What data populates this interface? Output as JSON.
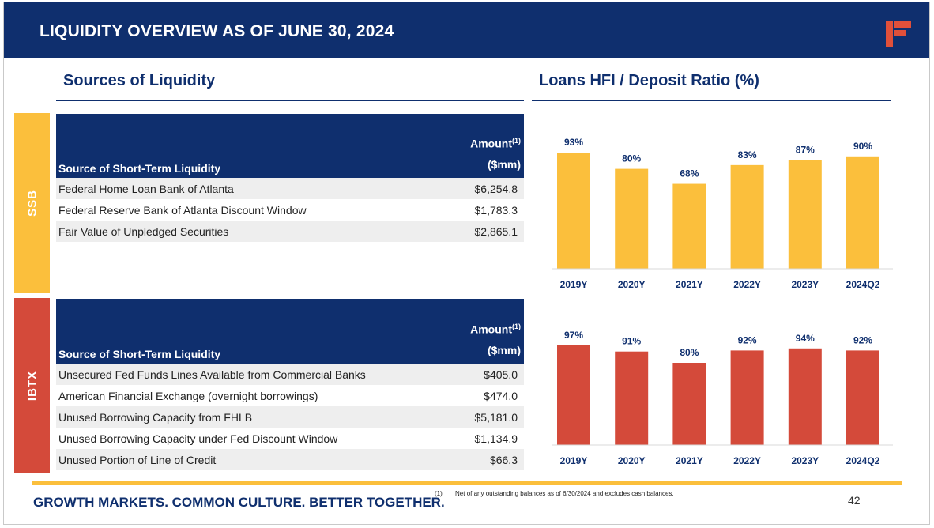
{
  "header": {
    "title": "LIQUIDITY OVERVIEW AS OF JUNE 30, 2024"
  },
  "left": {
    "title": "Sources of Liquidity"
  },
  "right": {
    "title": "Loans HFI / Deposit Ratio (%)"
  },
  "colors": {
    "navy": "#0f2f6e",
    "gold": "#fbbf3c",
    "red": "#d44a3a",
    "logo": "#e0503a"
  },
  "ssb": {
    "label": "SSB",
    "table": {
      "col1": "Source of Short-Term Liquidity",
      "col2_line1": "Amount",
      "col2_sup": "(1)",
      "col2_line2": "($mm)",
      "rows": [
        {
          "source": "Federal Home Loan Bank of Atlanta",
          "amount": "$6,254.8"
        },
        {
          "source": "Federal Reserve Bank of Atlanta Discount Window",
          "amount": "$1,783.3"
        },
        {
          "source": "Fair Value of Unpledged Securities",
          "amount": "$2,865.1"
        }
      ]
    }
  },
  "ibtx": {
    "label": "IBTX",
    "table": {
      "col1": "Source of Short-Term Liquidity",
      "col2_line1": "Amount",
      "col2_sup": "(1)",
      "col2_line2": "($mm)",
      "rows": [
        {
          "source": "Unsecured Fed Funds Lines Available from Commercial Banks",
          "amount": "$405.0"
        },
        {
          "source": "American Financial Exchange (overnight borrowings)",
          "amount": "$474.0"
        },
        {
          "source": "Unused Borrowing Capacity from FHLB",
          "amount": "$5,181.0"
        },
        {
          "source": "Unused Borrowing Capacity under Fed Discount Window",
          "amount": "$1,134.9"
        },
        {
          "source": "Unused Portion of Line of Credit",
          "amount": "$66.3"
        }
      ]
    }
  },
  "chart_data": [
    {
      "type": "bar",
      "title": "Loans HFI / Deposit Ratio (%)",
      "series_name": "SSB",
      "categories": [
        "2019Y",
        "2020Y",
        "2021Y",
        "2022Y",
        "2023Y",
        "2024Q2"
      ],
      "values": [
        93,
        80,
        68,
        83,
        87,
        90
      ],
      "labels": [
        "93%",
        "80%",
        "68%",
        "83%",
        "87%",
        "90%"
      ],
      "color": "#fbbf3c",
      "ylim": [
        0,
        100
      ]
    },
    {
      "type": "bar",
      "title": "Loans HFI / Deposit Ratio (%)",
      "series_name": "IBTX",
      "categories": [
        "2019Y",
        "2020Y",
        "2021Y",
        "2022Y",
        "2023Y",
        "2024Q2"
      ],
      "values": [
        97,
        91,
        80,
        92,
        94,
        92
      ],
      "labels": [
        "97%",
        "91%",
        "80%",
        "92%",
        "94%",
        "92%"
      ],
      "color": "#d44a3a",
      "ylim": [
        0,
        100
      ]
    }
  ],
  "footer": {
    "tagline": "GROWTH MARKETS. COMMON CULTURE. BETTER TOGETHER.",
    "footnote_num": "(1)",
    "footnote_text": "Net of any outstanding balances as of 6/30/2024 and excludes cash balances.",
    "page": "42"
  }
}
